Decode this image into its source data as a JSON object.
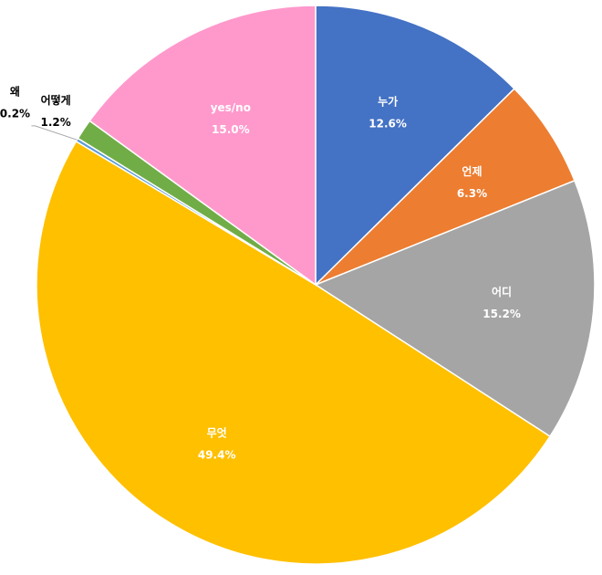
{
  "chart_data": {
    "type": "pie",
    "categories": [
      "누가",
      "언제",
      "어디",
      "무엇",
      "왜",
      "어떻게",
      "yes/no"
    ],
    "values": [
      12.6,
      6.3,
      15.2,
      49.4,
      0.2,
      1.2,
      15.0
    ],
    "value_labels": [
      "12.6%",
      "6.3%",
      "15.2%",
      "49.4%",
      "0.2%",
      "1.2%",
      "15.0%"
    ],
    "colors": [
      "#4472c4",
      "#ed7d31",
      "#a5a5a5",
      "#ffc000",
      "#5b9bd5",
      "#70ad47",
      "#ff99cc"
    ]
  }
}
